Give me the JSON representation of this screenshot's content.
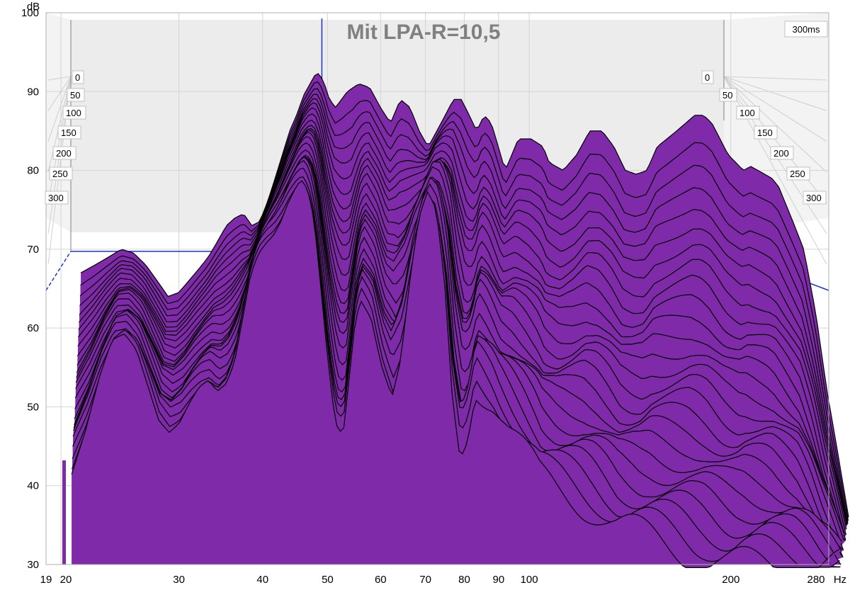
{
  "chart_data": {
    "type": "area",
    "title": "Mit LPA-R=10,5",
    "ylabel": "dB",
    "xlabel": "Hz",
    "ylim": [
      30,
      100
    ],
    "xlim": [
      19,
      280
    ],
    "x_scale": "log",
    "y_ticks": [
      "100",
      "90",
      "80",
      "70",
      "60",
      "50",
      "40",
      "30"
    ],
    "x_ticks": [
      "19",
      "20",
      "30",
      "40",
      "50",
      "60",
      "70",
      "80",
      "90",
      "100",
      "200",
      "280"
    ],
    "time_label": "300ms",
    "time_ticks": [
      "0",
      "50",
      "100",
      "150",
      "200",
      "250",
      "300"
    ],
    "fill_color": "#7f2aa8",
    "line_color": "#000000",
    "marker_color": "#1a35c8",
    "markers": [
      {
        "freq": 50,
        "db": 100
      },
      {
        "freq": 20,
        "db": 70
      }
    ],
    "series": [
      {
        "time_ms": 0,
        "points": [
          [
            20,
            67
          ],
          [
            21,
            68
          ],
          [
            22,
            69
          ],
          [
            23,
            70
          ],
          [
            24,
            69.5
          ],
          [
            25,
            68
          ],
          [
            26,
            66
          ],
          [
            27,
            64
          ],
          [
            28,
            64.5
          ],
          [
            29,
            66
          ],
          [
            30,
            67.5
          ],
          [
            31,
            69
          ],
          [
            32,
            71
          ],
          [
            33,
            73
          ],
          [
            34,
            74
          ],
          [
            35,
            74.5
          ],
          [
            36,
            73
          ],
          [
            37,
            73.5
          ],
          [
            38,
            76
          ],
          [
            39,
            79
          ],
          [
            40,
            82
          ],
          [
            41,
            85
          ],
          [
            42,
            87
          ],
          [
            43,
            89.5
          ],
          [
            44,
            91
          ],
          [
            45,
            92.5
          ],
          [
            46,
            91.5
          ],
          [
            47,
            89
          ],
          [
            48,
            88
          ],
          [
            49,
            89
          ],
          [
            50,
            90
          ],
          [
            52,
            91
          ],
          [
            54,
            90.5
          ],
          [
            56,
            88
          ],
          [
            58,
            86
          ],
          [
            60,
            89
          ],
          [
            62,
            88
          ],
          [
            64,
            85
          ],
          [
            66,
            83
          ],
          [
            68,
            85
          ],
          [
            70,
            87
          ],
          [
            72,
            89
          ],
          [
            74,
            89
          ],
          [
            76,
            87
          ],
          [
            78,
            85
          ],
          [
            80,
            87
          ],
          [
            82,
            86
          ],
          [
            84,
            83
          ],
          [
            86,
            80
          ],
          [
            88,
            82
          ],
          [
            90,
            84
          ],
          [
            94,
            84
          ],
          [
            98,
            83
          ],
          [
            100,
            81
          ],
          [
            105,
            80
          ],
          [
            110,
            82
          ],
          [
            115,
            85
          ],
          [
            120,
            85
          ],
          [
            125,
            83
          ],
          [
            130,
            80
          ],
          [
            135,
            79.5
          ],
          [
            140,
            80
          ],
          [
            145,
            83
          ],
          [
            150,
            84
          ],
          [
            155,
            85
          ],
          [
            160,
            86
          ],
          [
            165,
            87
          ],
          [
            170,
            87
          ],
          [
            175,
            86
          ],
          [
            180,
            84
          ],
          [
            185,
            82
          ],
          [
            190,
            81
          ],
          [
            195,
            80
          ],
          [
            200,
            80.5
          ],
          [
            205,
            80
          ],
          [
            210,
            79.5
          ],
          [
            215,
            79
          ],
          [
            220,
            78
          ],
          [
            230,
            74
          ],
          [
            240,
            70
          ],
          [
            250,
            62
          ],
          [
            260,
            52
          ],
          [
            270,
            44
          ],
          [
            280,
            36
          ]
        ]
      },
      {
        "time_ms": 300,
        "points": [
          [
            20,
            43
          ],
          [
            21,
            48
          ],
          [
            22,
            54
          ],
          [
            23,
            58.5
          ],
          [
            24,
            59.5
          ],
          [
            25,
            58
          ],
          [
            26,
            54
          ],
          [
            27,
            50
          ],
          [
            28,
            48.5
          ],
          [
            29,
            49.5
          ],
          [
            30,
            51.5
          ],
          [
            31,
            53
          ],
          [
            32,
            53.5
          ],
          [
            33,
            52
          ],
          [
            34,
            53
          ],
          [
            35,
            56
          ],
          [
            36,
            62
          ],
          [
            37,
            68
          ],
          [
            38,
            71
          ],
          [
            39,
            72.5
          ],
          [
            40,
            73.5
          ],
          [
            41,
            75
          ],
          [
            42,
            77
          ],
          [
            43,
            78.5
          ],
          [
            44,
            79.5
          ],
          [
            45,
            78
          ],
          [
            46,
            74
          ],
          [
            47,
            66
          ],
          [
            48,
            58
          ],
          [
            49,
            51
          ],
          [
            50,
            47
          ],
          [
            51,
            48
          ],
          [
            52,
            55
          ],
          [
            53,
            62
          ],
          [
            54,
            65
          ],
          [
            56,
            63
          ],
          [
            58,
            57
          ],
          [
            60,
            53
          ],
          [
            62,
            57
          ],
          [
            64,
            66
          ],
          [
            66,
            73
          ],
          [
            68,
            76
          ],
          [
            70,
            74
          ],
          [
            72,
            66
          ],
          [
            74,
            52
          ],
          [
            76,
            45
          ],
          [
            78,
            48
          ],
          [
            80,
            54
          ],
          [
            85,
            52
          ],
          [
            90,
            48
          ],
          [
            95,
            45
          ],
          [
            100,
            42
          ],
          [
            110,
            40
          ],
          [
            120,
            38
          ],
          [
            130,
            36
          ],
          [
            140,
            35
          ],
          [
            150,
            34
          ],
          [
            160,
            33
          ],
          [
            170,
            32
          ],
          [
            180,
            31.5
          ],
          [
            190,
            31
          ],
          [
            200,
            31
          ],
          [
            210,
            31
          ],
          [
            220,
            31
          ],
          [
            230,
            31
          ],
          [
            240,
            31
          ],
          [
            250,
            31
          ],
          [
            260,
            31
          ],
          [
            270,
            31
          ],
          [
            280,
            31
          ]
        ]
      }
    ]
  }
}
